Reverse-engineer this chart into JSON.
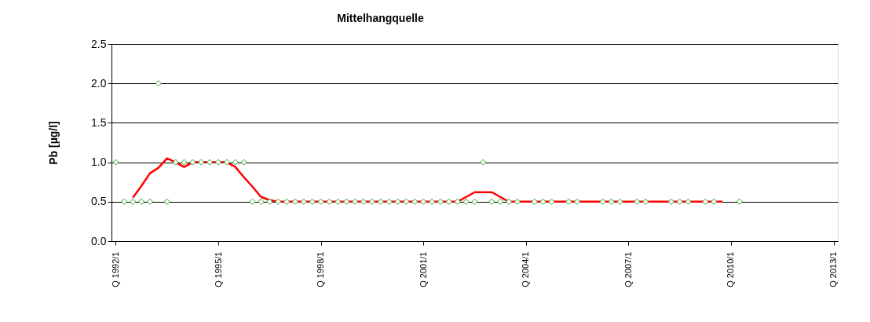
{
  "chart_data": {
    "type": "scatter",
    "title": "Mittelhangquelle",
    "ylabel": "Pb [µg/l]",
    "categories": [
      "Q 1992/1",
      null,
      null,
      null,
      null,
      null,
      null,
      null,
      null,
      null,
      null,
      null,
      "Q 1995/1",
      null,
      null,
      null,
      null,
      null,
      null,
      null,
      null,
      null,
      null,
      null,
      "Q 1998/1",
      null,
      null,
      null,
      null,
      null,
      null,
      null,
      null,
      null,
      null,
      null,
      "Q 2001/1",
      null,
      null,
      null,
      null,
      null,
      null,
      null,
      null,
      null,
      null,
      null,
      "Q 2004/1",
      null,
      null,
      null,
      null,
      null,
      null,
      null,
      null,
      null,
      null,
      null,
      "Q 2007/1",
      null,
      null,
      null,
      null,
      null,
      null,
      null,
      null,
      null,
      null,
      null,
      "Q 2010/1",
      null,
      null,
      null,
      null,
      null,
      null,
      null,
      null,
      null,
      null,
      null,
      "Q 2013/1"
    ],
    "series": [
      {
        "type": "line",
        "color": "#ff0000",
        "marker": "none",
        "line_style": "solid",
        "values": [
          null,
          null,
          0.55,
          0.7,
          0.86,
          0.93,
          1.05,
          1.0,
          0.94,
          1.0,
          1.0,
          1.0,
          1.0,
          1.0,
          0.94,
          0.81,
          0.69,
          0.56,
          0.52,
          0.5,
          0.5,
          0.5,
          0.5,
          0.5,
          0.5,
          0.5,
          0.5,
          0.5,
          0.5,
          0.5,
          0.5,
          0.5,
          0.5,
          0.5,
          0.5,
          0.5,
          0.5,
          0.5,
          0.5,
          0.5,
          0.5,
          0.56,
          0.62,
          0.62,
          0.62,
          0.56,
          0.5,
          0.5,
          0.5,
          0.5,
          0.5,
          0.5,
          0.5,
          0.5,
          0.5,
          0.5,
          0.5,
          0.5,
          0.5,
          0.5,
          0.5,
          0.5,
          0.5,
          0.5,
          0.5,
          0.5,
          0.5,
          0.5,
          0.5,
          0.5,
          0.5,
          0.5,
          null,
          null,
          null,
          null,
          null,
          null,
          null,
          null,
          null,
          null,
          null,
          null,
          null
        ]
      },
      {
        "color": "#33a02c",
        "marker": "diamond",
        "values": [
          1.0,
          0.5,
          0.5,
          0.5,
          0.5,
          2.0,
          0.5,
          1.0,
          1.0,
          1.0,
          1.0,
          1.0,
          1.0,
          1.0,
          1.0,
          1.0,
          0.5,
          0.5,
          0.5,
          0.5,
          0.5,
          0.5,
          0.5,
          0.5,
          0.5,
          0.5,
          0.5,
          0.5,
          0.5,
          0.5,
          0.5,
          0.5,
          0.5,
          0.5,
          0.5,
          0.5,
          0.5,
          0.5,
          0.5,
          0.5,
          0.5,
          0.5,
          0.5,
          1.0,
          0.5,
          0.5,
          0.5,
          0.5,
          null,
          0.5,
          0.5,
          0.5,
          null,
          0.5,
          0.5,
          null,
          null,
          0.5,
          0.5,
          0.5,
          null,
          0.5,
          0.5,
          null,
          null,
          0.5,
          0.5,
          0.5,
          null,
          0.5,
          0.5,
          null,
          null,
          0.5,
          null,
          null,
          null,
          null,
          null,
          null,
          null,
          null,
          null,
          null,
          null
        ]
      }
    ],
    "ylim": [
      0,
      2.5
    ],
    "yticks": [
      {
        "value": 0,
        "label": "0.0"
      },
      {
        "value": 0.5,
        "label": "0.5"
      },
      {
        "value": 1,
        "label": "1.0"
      },
      {
        "value": 1.5,
        "label": "1.5"
      },
      {
        "value": 2,
        "label": "2.0"
      },
      {
        "value": 2.5,
        "label": "2.5"
      }
    ],
    "grid": "y"
  }
}
